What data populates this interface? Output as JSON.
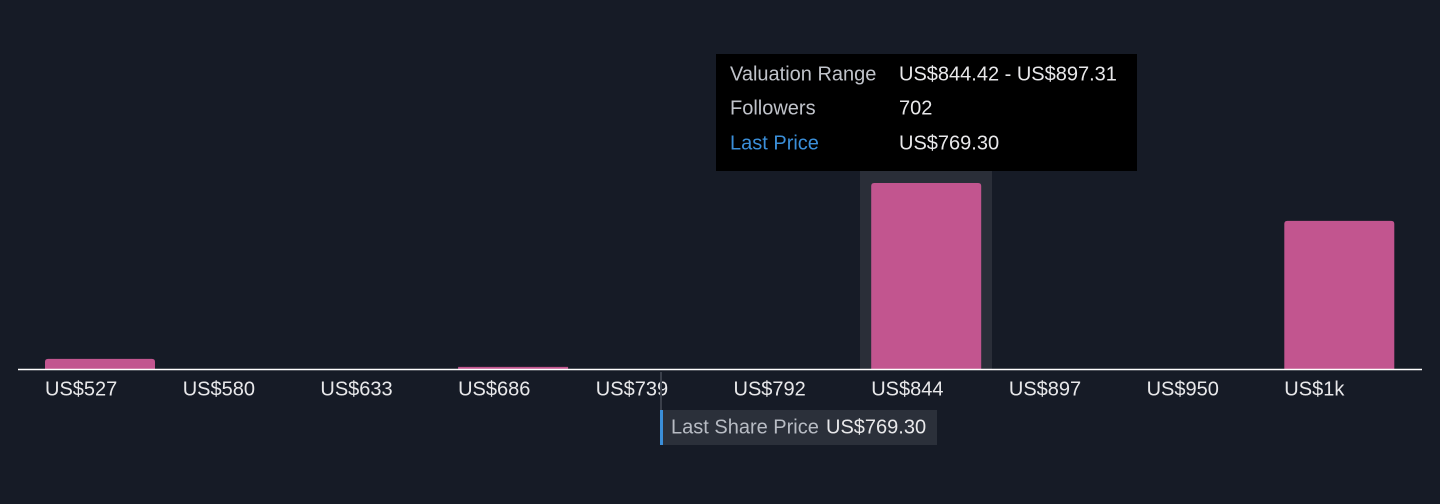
{
  "chart_data": {
    "type": "bar",
    "categories": [
      "US$527",
      "US$580",
      "US$633",
      "US$686",
      "US$739",
      "US$792",
      "US$844",
      "US$897",
      "US$950",
      "US$1k"
    ],
    "values": [
      38,
      0,
      0,
      8,
      0,
      0,
      702,
      0,
      0,
      559
    ],
    "color": "#c2558f",
    "tooltip": {
      "range_label": "Valuation Range",
      "range": "US$844.42 - US$897.31",
      "followers_label": "Followers",
      "price_label": "Last Price"
    },
    "last_price_label": "Last Share Price",
    "last_price": "US$769.30"
  }
}
